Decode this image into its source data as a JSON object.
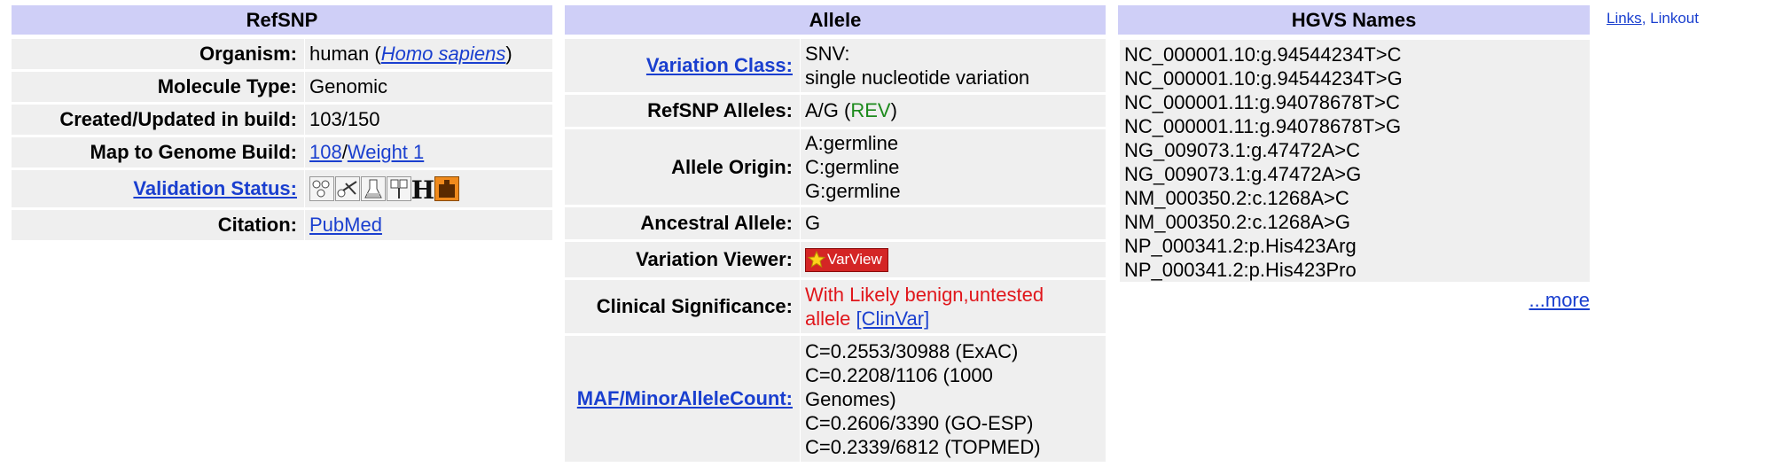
{
  "refsnp": {
    "header": "RefSNP",
    "organism_label": "Organism:",
    "organism_prefix": "human (",
    "organism_link": "Homo sapiens",
    "organism_suffix": ")",
    "molecule_label": "Molecule Type:",
    "molecule_value": "Genomic",
    "created_label": "Created/Updated in build:",
    "created_value": "103/150",
    "map_label": "Map to Genome Build:",
    "map_build_link": "108",
    "map_sep": "/",
    "map_weight_link": "Weight 1",
    "validation_label": "Validation Status:",
    "validation_icons": [
      "cluster-icon",
      "frequency-icon",
      "submitter-icon",
      "doublehit-icon",
      "hapmap-icon",
      "1000g-icon"
    ],
    "validation_h_text": "H",
    "citation_label": "Citation:",
    "citation_link": "PubMed"
  },
  "allele": {
    "header": "Allele",
    "variation_class_label": "Variation Class:",
    "variation_class_line1": "SNV:",
    "variation_class_line2": "single nucleotide variation",
    "refsnp_alleles_label": "RefSNP Alleles:",
    "refsnp_alleles_value": "A/G (",
    "refsnp_alleles_rev": "REV",
    "refsnp_alleles_close": ")",
    "origin_label": "Allele Origin:",
    "origin_lines": [
      "A:germline",
      "C:germline",
      "G:germline"
    ],
    "ancestral_label": "Ancestral Allele:",
    "ancestral_value": "G",
    "viewer_label": "Variation Viewer:",
    "viewer_button": "VarView",
    "clinical_label": "Clinical Significance:",
    "clinical_line1": "With Likely benign,untested",
    "clinical_line2": "allele",
    "clinical_link": "[ClinVar]",
    "maf_label": "MAF/MinorAlleleCount:",
    "maf_lines": [
      "C=0.2553/30988 (ExAC)",
      "C=0.2208/1106 (1000",
      "Genomes)",
      "C=0.2606/3390 (GO-ESP)",
      "C=0.2339/6812 (TOPMED)"
    ]
  },
  "hgvs": {
    "header": "HGVS Names",
    "names": [
      "NC_000001.10:g.94544234T>C",
      "NC_000001.10:g.94544234T>G",
      "NC_000001.11:g.94078678T>C",
      "NC_000001.11:g.94078678T>G",
      "NG_009073.1:g.47472A>C",
      "NG_009073.1:g.47472A>G",
      "NM_000350.2:c.1268A>C",
      "NM_000350.2:c.1268A>G",
      "NP_000341.2:p.His423Arg",
      "NP_000341.2:p.His423Pro"
    ],
    "more_link": "...more"
  },
  "links": {
    "links_link": "Links",
    "linkout_text": ", Linkout"
  },
  "colors": {
    "header_bg": "#cfcff7",
    "cell_bg": "#efefef",
    "link": "#1a3fcf",
    "rev_green": "#1c8a1c",
    "clinical_red": "#e0161b",
    "varview_red": "#d42525"
  }
}
